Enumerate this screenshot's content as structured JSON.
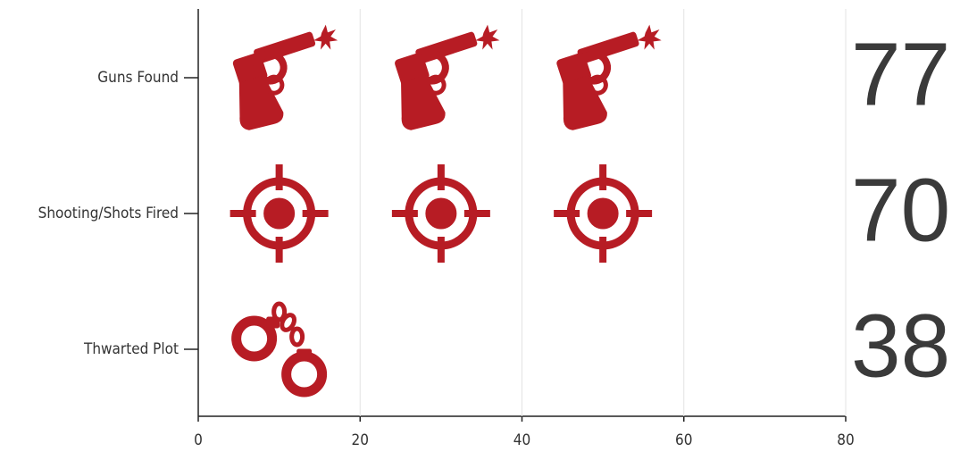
{
  "chart_data": {
    "type": "pictogram",
    "categories": [
      "Guns Found",
      "Shooting/Shots Fired",
      "Thwarted Plot"
    ],
    "values": [
      77,
      70,
      38
    ],
    "color": "#b71c24",
    "xlim": [
      0,
      80
    ],
    "xticks": [
      0,
      20,
      40,
      60,
      80
    ],
    "grid": true
  }
}
